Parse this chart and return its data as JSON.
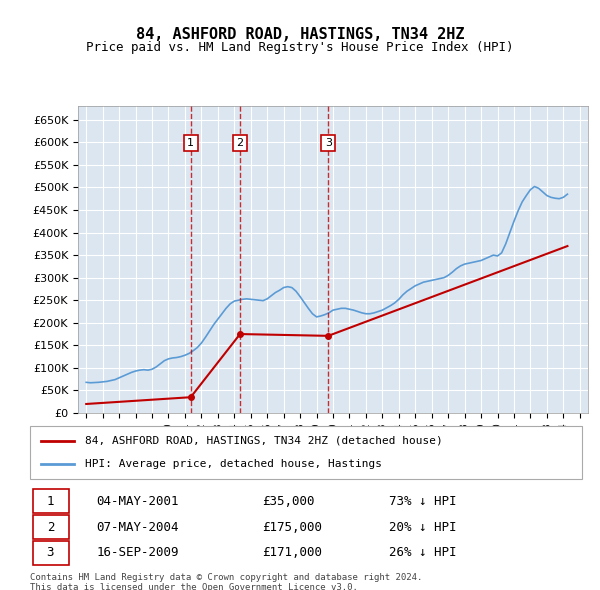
{
  "title": "84, ASHFORD ROAD, HASTINGS, TN34 2HZ",
  "subtitle": "Price paid vs. HM Land Registry's House Price Index (HPI)",
  "hpi_color": "#5b9bd5",
  "property_color": "#c00000",
  "background_color": "#dce6f1",
  "plot_bg": "#ffffff",
  "ylim": [
    0,
    680000
  ],
  "yticks": [
    0,
    50000,
    100000,
    150000,
    200000,
    250000,
    300000,
    350000,
    400000,
    450000,
    500000,
    550000,
    600000,
    650000
  ],
  "xlim_start": 1994.5,
  "xlim_end": 2025.5,
  "transactions": [
    {
      "num": 1,
      "date": "04-MAY-2001",
      "year": 2001.35,
      "price": 35000,
      "pct": "73%",
      "dir": "↓"
    },
    {
      "num": 2,
      "date": "07-MAY-2004",
      "year": 2004.35,
      "price": 175000,
      "pct": "20%",
      "dir": "↓"
    },
    {
      "num": 3,
      "date": "16-SEP-2009",
      "year": 2009.71,
      "price": 171000,
      "pct": "26%",
      "dir": "↓"
    }
  ],
  "legend_label_property": "84, ASHFORD ROAD, HASTINGS, TN34 2HZ (detached house)",
  "legend_label_hpi": "HPI: Average price, detached house, Hastings",
  "footer1": "Contains HM Land Registry data © Crown copyright and database right 2024.",
  "footer2": "This data is licensed under the Open Government Licence v3.0.",
  "hpi_data": {
    "years": [
      1995,
      1995.25,
      1995.5,
      1995.75,
      1996,
      1996.25,
      1996.5,
      1996.75,
      1997,
      1997.25,
      1997.5,
      1997.75,
      1998,
      1998.25,
      1998.5,
      1998.75,
      1999,
      1999.25,
      1999.5,
      1999.75,
      2000,
      2000.25,
      2000.5,
      2000.75,
      2001,
      2001.25,
      2001.5,
      2001.75,
      2002,
      2002.25,
      2002.5,
      2002.75,
      2003,
      2003.25,
      2003.5,
      2003.75,
      2004,
      2004.25,
      2004.5,
      2004.75,
      2005,
      2005.25,
      2005.5,
      2005.75,
      2006,
      2006.25,
      2006.5,
      2006.75,
      2007,
      2007.25,
      2007.5,
      2007.75,
      2008,
      2008.25,
      2008.5,
      2008.75,
      2009,
      2009.25,
      2009.5,
      2009.75,
      2010,
      2010.25,
      2010.5,
      2010.75,
      2011,
      2011.25,
      2011.5,
      2011.75,
      2012,
      2012.25,
      2012.5,
      2012.75,
      2013,
      2013.25,
      2013.5,
      2013.75,
      2014,
      2014.25,
      2014.5,
      2014.75,
      2015,
      2015.25,
      2015.5,
      2015.75,
      2016,
      2016.25,
      2016.5,
      2016.75,
      2017,
      2017.25,
      2017.5,
      2017.75,
      2018,
      2018.25,
      2018.5,
      2018.75,
      2019,
      2019.25,
      2019.5,
      2019.75,
      2020,
      2020.25,
      2020.5,
      2020.75,
      2021,
      2021.25,
      2021.5,
      2021.75,
      2022,
      2022.25,
      2022.5,
      2022.75,
      2023,
      2023.25,
      2023.5,
      2023.75,
      2024,
      2024.25
    ],
    "values": [
      68000,
      67000,
      67500,
      68000,
      69000,
      70000,
      72000,
      74000,
      78000,
      82000,
      86000,
      90000,
      93000,
      95000,
      96000,
      95000,
      97000,
      102000,
      109000,
      116000,
      120000,
      122000,
      123000,
      125000,
      128000,
      132000,
      138000,
      145000,
      155000,
      168000,
      182000,
      196000,
      208000,
      220000,
      232000,
      242000,
      248000,
      250000,
      252000,
      253000,
      252000,
      251000,
      250000,
      249000,
      253000,
      260000,
      267000,
      272000,
      278000,
      280000,
      278000,
      270000,
      258000,
      245000,
      232000,
      220000,
      213000,
      215000,
      218000,
      222000,
      228000,
      230000,
      232000,
      232000,
      230000,
      228000,
      225000,
      222000,
      220000,
      220000,
      222000,
      225000,
      228000,
      233000,
      238000,
      244000,
      252000,
      262000,
      270000,
      276000,
      282000,
      286000,
      290000,
      292000,
      294000,
      296000,
      298000,
      300000,
      305000,
      312000,
      320000,
      326000,
      330000,
      332000,
      334000,
      336000,
      338000,
      342000,
      346000,
      350000,
      348000,
      355000,
      375000,
      400000,
      425000,
      448000,
      468000,
      482000,
      495000,
      502000,
      498000,
      490000,
      482000,
      478000,
      476000,
      475000,
      478000,
      485000
    ]
  },
  "property_data": {
    "years": [
      1995,
      2001.35,
      2004.35,
      2009.71,
      2024.25
    ],
    "values": [
      20000,
      35000,
      175000,
      171000,
      370000
    ]
  }
}
